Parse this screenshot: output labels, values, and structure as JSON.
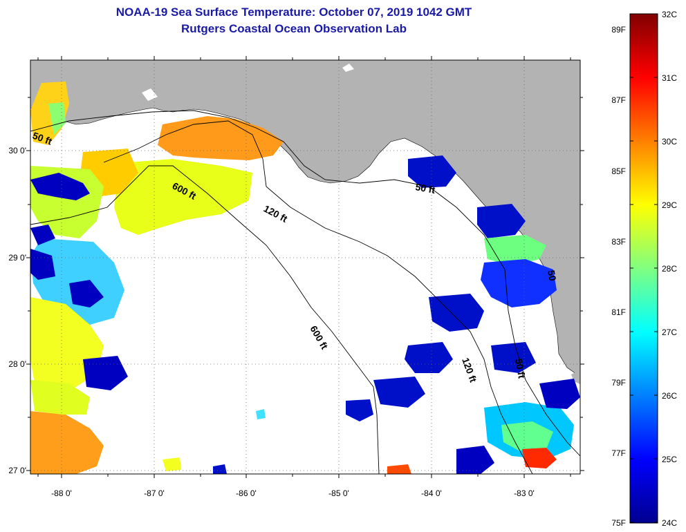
{
  "header": {
    "title": "NOAA-19 Sea Surface Temperature:  October 07, 2019 1042 GMT",
    "subtitle": "Rutgers Coastal Ocean Observation Lab"
  },
  "map": {
    "lon_range": [
      -88.35,
      -82.4
    ],
    "lat_range": [
      26.97,
      30.85
    ],
    "lon_ticks": [
      -88,
      -87,
      -86,
      -85,
      -84,
      -83
    ],
    "lat_ticks": [
      27,
      28,
      29,
      30
    ],
    "lon_tick_labels": [
      "-88 0'",
      "-87 0'",
      "-86 0'",
      "-85 0'",
      "-84 0'",
      "-83 0'"
    ],
    "lat_tick_labels": [
      "27 0'",
      "28 0'",
      "29 0'",
      "30 0'"
    ],
    "land_color": "#b3b3b3",
    "ocean_color": "#ffffff",
    "depth_labels": [
      {
        "text": "50 ft"
      },
      {
        "text": "600 ft"
      },
      {
        "text": "120 ft"
      },
      {
        "text": "50 ft"
      },
      {
        "text": "600 ft"
      },
      {
        "text": "120 ft"
      },
      {
        "text": "50 ft"
      },
      {
        "text": "50"
      }
    ]
  },
  "colorbar": {
    "colors": [
      "#00008f",
      "#0000ff",
      "#0080ff",
      "#00ffff",
      "#80ff80",
      "#ffff00",
      "#ff8000",
      "#ff0000",
      "#800000"
    ],
    "celsius_labels": [
      "32C",
      "31C",
      "30C",
      "29C",
      "28C",
      "27C",
      "26C",
      "25C",
      "24C"
    ],
    "fahrenheit_labels": [
      "89F",
      "87F",
      "85F",
      "83F",
      "81F",
      "79F",
      "77F",
      "75F"
    ]
  }
}
